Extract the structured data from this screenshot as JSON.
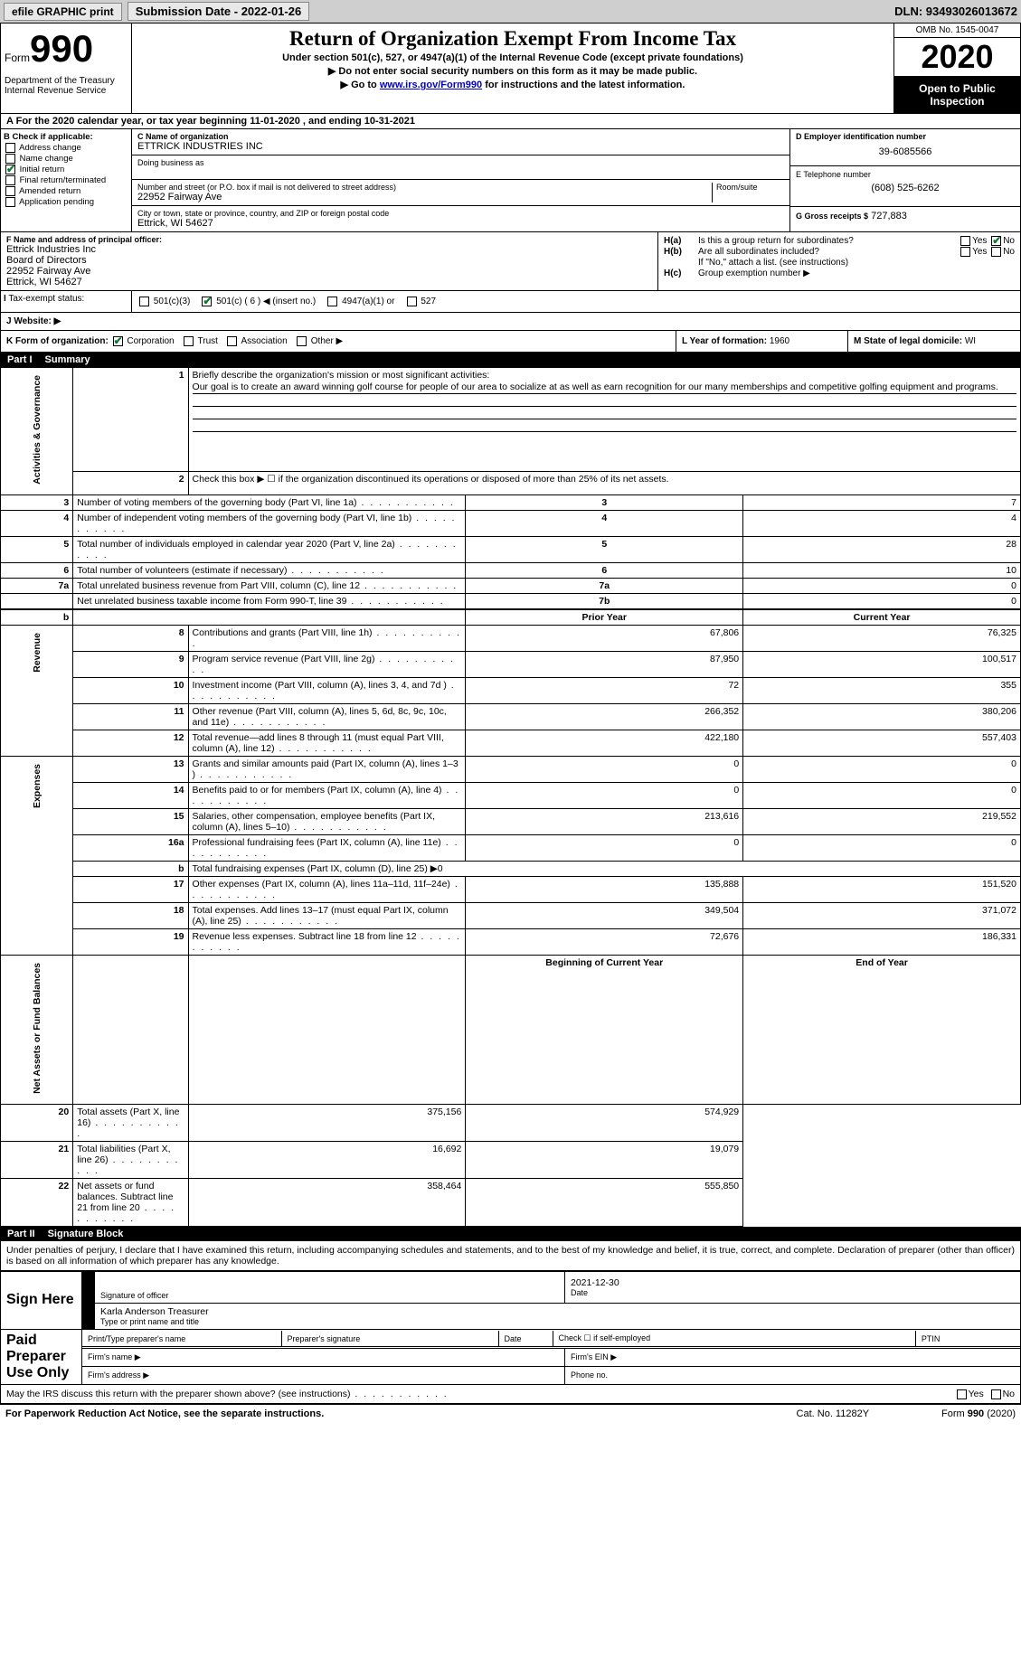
{
  "top_bar": {
    "efile": "efile GRAPHIC print",
    "sub_label": "Submission Date - 2022-01-26",
    "dln": "DLN: 93493026013672"
  },
  "header": {
    "form_label": "Form",
    "form_num": "990",
    "dept": "Department of the Treasury\nInternal Revenue Service",
    "title": "Return of Organization Exempt From Income Tax",
    "subtitle": "Under section 501(c), 527, or 4947(a)(1) of the Internal Revenue Code (except private foundations)",
    "line1": "▶ Do not enter social security numbers on this form as it may be made public.",
    "line2a": "▶ Go to ",
    "line2_link": "www.irs.gov/Form990",
    "line2b": " for instructions and the latest information.",
    "omb": "OMB No. 1545-0047",
    "year": "2020",
    "open": "Open to Public Inspection"
  },
  "row_a": "For the 2020 calendar year, or tax year beginning 11-01-2020   , and ending 10-31-2021",
  "b": {
    "hdr": "B Check if applicable:",
    "items": [
      "Address change",
      "Name change",
      "Initial return",
      "Final return/terminated",
      "Amended return",
      "Application pending"
    ],
    "checked": 2
  },
  "c": {
    "name_label": "C Name of organization",
    "name": "ETTRICK INDUSTRIES INC",
    "dba_label": "Doing business as",
    "street_label": "Number and street (or P.O. box if mail is not delivered to street address)",
    "room_label": "Room/suite",
    "street": "22952 Fairway Ave",
    "city_label": "City or town, state or province, country, and ZIP or foreign postal code",
    "city": "Ettrick, WI  54627"
  },
  "d": {
    "label": "D Employer identification number",
    "val": "39-6085566"
  },
  "e": {
    "label": "E Telephone number",
    "val": "(608) 525-6262"
  },
  "g": {
    "label": "G Gross receipts $",
    "val": "727,883"
  },
  "f": {
    "label": "F  Name and address of principal officer:",
    "lines": [
      "Ettrick Industries Inc",
      "Board of Directors",
      "22952 Fairway Ave",
      "Ettrick, WI  54627"
    ]
  },
  "h": {
    "a_label": "H(a)",
    "a_text": "Is this a group return for subordinates?",
    "a_no": true,
    "b_label": "H(b)",
    "b_text": "Are all subordinates included?",
    "b_note": "If \"No,\" attach a list. (see instructions)",
    "c_label": "H(c)",
    "c_text": "Group exemption number ▶"
  },
  "i": {
    "label": "Tax-exempt status:",
    "opts": [
      "501(c)(3)",
      "501(c) ( 6 ) ◀ (insert no.)",
      "4947(a)(1) or",
      "527"
    ],
    "checked": 1
  },
  "j": {
    "label": "J   Website: ▶"
  },
  "k": {
    "label": "K Form of organization:",
    "opts": [
      "Corporation",
      "Trust",
      "Association",
      "Other ▶"
    ],
    "checked": 0
  },
  "l": {
    "label": "L Year of formation:",
    "val": "1960"
  },
  "m": {
    "label": "M State of legal domicile:",
    "val": "WI"
  },
  "parts": {
    "p1": "Part I",
    "p1t": "Summary",
    "p2": "Part II",
    "p2t": "Signature Block"
  },
  "summary": {
    "q1": "Briefly describe the organization's mission or most significant activities:",
    "mission": "Our goal is to create an award winning golf course for people of our area to socialize at as well as earn recognition for our many memberships and competitive golfing equipment and programs.",
    "q2": "Check this box ▶ ☐  if the organization discontinued its operations or disposed of more than 25% of its net assets.",
    "rows_gov": [
      {
        "n": "3",
        "d": "Number of voting members of the governing body (Part VI, line 1a)",
        "b": "3",
        "v": "7"
      },
      {
        "n": "4",
        "d": "Number of independent voting members of the governing body (Part VI, line 1b)",
        "b": "4",
        "v": "4"
      },
      {
        "n": "5",
        "d": "Total number of individuals employed in calendar year 2020 (Part V, line 2a)",
        "b": "5",
        "v": "28"
      },
      {
        "n": "6",
        "d": "Total number of volunteers (estimate if necessary)",
        "b": "6",
        "v": "10"
      },
      {
        "n": "7a",
        "d": "Total unrelated business revenue from Part VIII, column (C), line 12",
        "b": "7a",
        "v": "0"
      },
      {
        "n": "",
        "d": "Net unrelated business taxable income from Form 990-T, line 39",
        "b": "7b",
        "v": "0"
      }
    ],
    "hdr_prior": "Prior Year",
    "hdr_curr": "Current Year",
    "rows_rev": [
      {
        "n": "8",
        "d": "Contributions and grants (Part VIII, line 1h)",
        "p": "67,806",
        "c": "76,325"
      },
      {
        "n": "9",
        "d": "Program service revenue (Part VIII, line 2g)",
        "p": "87,950",
        "c": "100,517"
      },
      {
        "n": "10",
        "d": "Investment income (Part VIII, column (A), lines 3, 4, and 7d )",
        "p": "72",
        "c": "355"
      },
      {
        "n": "11",
        "d": "Other revenue (Part VIII, column (A), lines 5, 6d, 8c, 9c, 10c, and 11e)",
        "p": "266,352",
        "c": "380,206"
      },
      {
        "n": "12",
        "d": "Total revenue—add lines 8 through 11 (must equal Part VIII, column (A), line 12)",
        "p": "422,180",
        "c": "557,403"
      }
    ],
    "rows_exp": [
      {
        "n": "13",
        "d": "Grants and similar amounts paid (Part IX, column (A), lines 1–3 )",
        "p": "0",
        "c": "0"
      },
      {
        "n": "14",
        "d": "Benefits paid to or for members (Part IX, column (A), line 4)",
        "p": "0",
        "c": "0"
      },
      {
        "n": "15",
        "d": "Salaries, other compensation, employee benefits (Part IX, column (A), lines 5–10)",
        "p": "213,616",
        "c": "219,552"
      },
      {
        "n": "16a",
        "d": "Professional fundraising fees (Part IX, column (A), line 11e)",
        "p": "0",
        "c": "0"
      },
      {
        "n": "b",
        "d": "Total fundraising expenses (Part IX, column (D), line 25) ▶0",
        "p": "",
        "c": "",
        "nobox": true
      },
      {
        "n": "17",
        "d": "Other expenses (Part IX, column (A), lines 11a–11d, 11f–24e)",
        "p": "135,888",
        "c": "151,520"
      },
      {
        "n": "18",
        "d": "Total expenses. Add lines 13–17 (must equal Part IX, column (A), line 25)",
        "p": "349,504",
        "c": "371,072"
      },
      {
        "n": "19",
        "d": "Revenue less expenses. Subtract line 18 from line 12",
        "p": "72,676",
        "c": "186,331"
      }
    ],
    "hdr_begin": "Beginning of Current Year",
    "hdr_end": "End of Year",
    "rows_net": [
      {
        "n": "20",
        "d": "Total assets (Part X, line 16)",
        "p": "375,156",
        "c": "574,929"
      },
      {
        "n": "21",
        "d": "Total liabilities (Part X, line 26)",
        "p": "16,692",
        "c": "19,079"
      },
      {
        "n": "22",
        "d": "Net assets or fund balances. Subtract line 21 from line 20",
        "p": "358,464",
        "c": "555,850"
      }
    ],
    "vlabels": {
      "gov": "Activities & Governance",
      "rev": "Revenue",
      "exp": "Expenses",
      "net": "Net Assets or Fund Balances"
    }
  },
  "sig": {
    "declare": "Under penalties of perjury, I declare that I have examined this return, including accompanying schedules and statements, and to the best of my knowledge and belief, it is true, correct, and complete. Declaration of preparer (other than officer) is based on all information of which preparer has any knowledge.",
    "sign_here": "Sign Here",
    "sig_officer": "Signature of officer",
    "date_lbl": "Date",
    "date_val": "2021-12-30",
    "name_title": "Karla Anderson  Treasurer",
    "type_name": "Type or print name and title",
    "paid": "Paid Preparer Use Only",
    "pt_name": "Print/Type preparer's name",
    "pt_sig": "Preparer's signature",
    "pt_date": "Date",
    "pt_check": "Check ☐ if self-employed",
    "ptin": "PTIN",
    "firm_name": "Firm's name   ▶",
    "firm_ein": "Firm's EIN ▶",
    "firm_addr": "Firm's address ▶",
    "phone": "Phone no.",
    "irs_discuss": "May the IRS discuss this return with the preparer shown above? (see instructions)"
  },
  "footer": {
    "l": "For Paperwork Reduction Act Notice, see the separate instructions.",
    "c": "Cat. No. 11282Y",
    "r": "Form 990 (2020)"
  }
}
